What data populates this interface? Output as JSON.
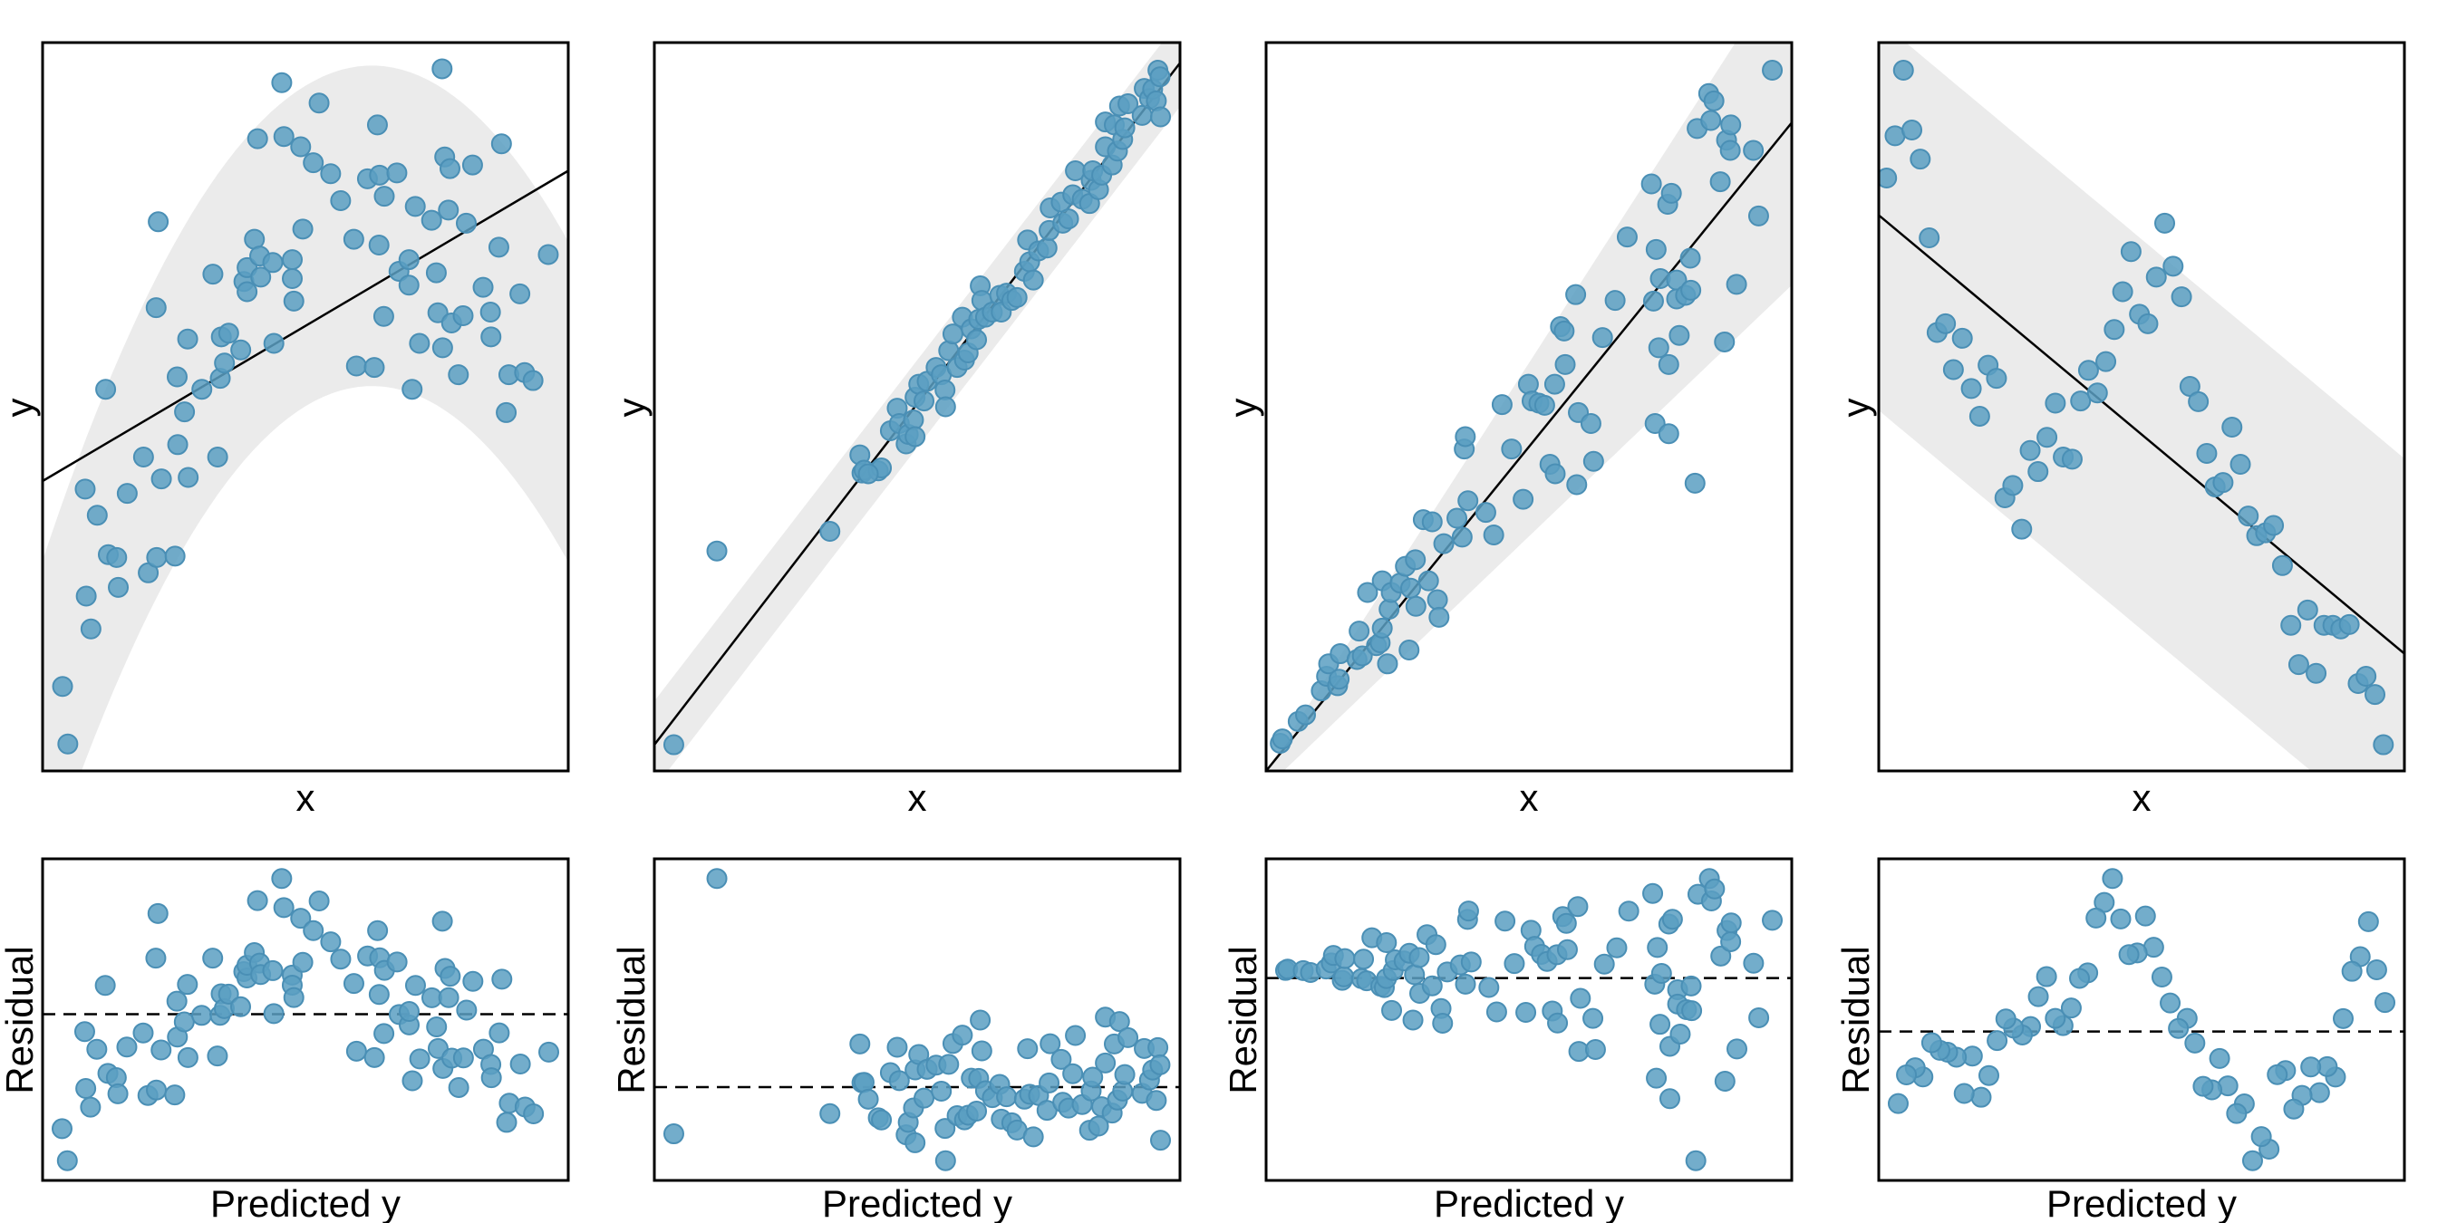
{
  "colors": {
    "point": "#5b9fc2",
    "point_stroke": "#4a8fb5",
    "band": "#ebebeb",
    "line": "#000000"
  },
  "chart_data": [
    {
      "type": "scatter",
      "xlabel": "x",
      "ylabel": "y",
      "residual_xlabel": "Predicted y",
      "residual_ylabel": "Residual",
      "xlim": [
        0,
        10
      ],
      "ylim": [
        0,
        10
      ],
      "fit": {
        "intercept": 3.98,
        "slope": 0.426
      },
      "band": {
        "kind": "quadratic",
        "upper": [
          2.89,
          2.169,
          -0.1731
        ],
        "width": 4.4
      },
      "points": [
        [
          0.38,
          1.16
        ],
        [
          0.48,
          0.37
        ],
        [
          0.81,
          3.87
        ],
        [
          1.04,
          3.51
        ],
        [
          0.83,
          2.4
        ],
        [
          0.92,
          1.95
        ],
        [
          1.25,
          2.97
        ],
        [
          1.41,
          2.93
        ],
        [
          1.44,
          2.52
        ],
        [
          1.2,
          5.24
        ],
        [
          1.61,
          3.81
        ],
        [
          1.92,
          4.31
        ],
        [
          2.01,
          2.72
        ],
        [
          2.17,
          2.93
        ],
        [
          2.26,
          4.01
        ],
        [
          2.2,
          7.54
        ],
        [
          2.16,
          6.36
        ],
        [
          2.52,
          2.95
        ],
        [
          2.56,
          5.41
        ],
        [
          2.57,
          4.48
        ],
        [
          2.7,
          4.93
        ],
        [
          2.77,
          4.03
        ],
        [
          2.76,
          5.93
        ],
        [
          3.03,
          5.24
        ],
        [
          3.24,
          6.82
        ],
        [
          3.33,
          4.31
        ],
        [
          3.38,
          5.39
        ],
        [
          3.4,
          5.96
        ],
        [
          3.46,
          5.6
        ],
        [
          3.54,
          6.01
        ],
        [
          3.77,
          5.78
        ],
        [
          3.83,
          6.72
        ],
        [
          3.89,
          6.58
        ],
        [
          3.89,
          6.91
        ],
        [
          4.03,
          7.3
        ],
        [
          4.13,
          7.07
        ],
        [
          4.15,
          6.78
        ],
        [
          4.09,
          8.68
        ],
        [
          4.38,
          6.98
        ],
        [
          4.4,
          5.87
        ],
        [
          4.55,
          9.45
        ],
        [
          4.59,
          8.71
        ],
        [
          4.75,
          7.02
        ],
        [
          4.75,
          6.76
        ],
        [
          4.78,
          6.45
        ],
        [
          4.91,
          8.57
        ],
        [
          4.95,
          7.44
        ],
        [
          5.15,
          8.35
        ],
        [
          5.26,
          9.17
        ],
        [
          5.48,
          8.2
        ],
        [
          5.67,
          7.83
        ],
        [
          5.92,
          7.3
        ],
        [
          5.97,
          5.56
        ],
        [
          6.18,
          8.13
        ],
        [
          6.31,
          5.54
        ],
        [
          6.41,
          8.18
        ],
        [
          6.4,
          7.22
        ],
        [
          6.37,
          8.87
        ],
        [
          6.49,
          6.24
        ],
        [
          6.5,
          7.89
        ],
        [
          6.74,
          8.21
        ],
        [
          6.78,
          6.86
        ],
        [
          6.97,
          6.67
        ],
        [
          6.97,
          7.02
        ],
        [
          7.03,
          5.24
        ],
        [
          7.09,
          7.75
        ],
        [
          7.17,
          5.87
        ],
        [
          7.4,
          7.56
        ],
        [
          7.49,
          6.84
        ],
        [
          7.6,
          9.64
        ],
        [
          7.61,
          5.81
        ],
        [
          7.52,
          6.29
        ],
        [
          7.65,
          8.43
        ],
        [
          7.72,
          7.7
        ],
        [
          7.75,
          8.27
        ],
        [
          7.78,
          6.15
        ],
        [
          7.91,
          5.44
        ],
        [
          8.0,
          6.25
        ],
        [
          8.06,
          7.52
        ],
        [
          8.18,
          8.32
        ],
        [
          8.38,
          6.64
        ],
        [
          8.52,
          6.3
        ],
        [
          8.53,
          5.96
        ],
        [
          8.68,
          7.19
        ],
        [
          8.73,
          8.61
        ],
        [
          8.82,
          4.92
        ],
        [
          8.87,
          5.44
        ],
        [
          9.08,
          6.55
        ],
        [
          9.17,
          5.47
        ],
        [
          9.33,
          5.36
        ],
        [
          9.62,
          7.09
        ]
      ]
    },
    {
      "type": "scatter",
      "xlabel": "x",
      "ylabel": "y",
      "residual_xlabel": "Predicted y",
      "residual_ylabel": "Residual",
      "xlim": [
        0,
        10
      ],
      "ylim": [
        0,
        10
      ],
      "fit": {
        "intercept": 0.36,
        "slope": 0.936
      },
      "band": {
        "kind": "linear",
        "upper": [
          0.96,
          0.936
        ],
        "lower": [
          -0.24,
          0.936
        ]
      },
      "points": [
        [
          0.37,
          0.36
        ],
        [
          1.19,
          3.02
        ],
        [
          3.34,
          3.29
        ],
        [
          3.91,
          4.34
        ],
        [
          3.95,
          4.09
        ],
        [
          3.99,
          4.13
        ],
        [
          4.26,
          4.12
        ],
        [
          4.32,
          4.16
        ],
        [
          4.07,
          4.08
        ],
        [
          4.49,
          4.67
        ],
        [
          4.62,
          4.98
        ],
        [
          4.66,
          4.77
        ],
        [
          4.79,
          4.49
        ],
        [
          4.83,
          4.62
        ],
        [
          4.93,
          4.82
        ],
        [
          4.96,
          4.59
        ],
        [
          4.96,
          5.13
        ],
        [
          5.03,
          5.31
        ],
        [
          5.13,
          5.08
        ],
        [
          5.19,
          5.35
        ],
        [
          5.36,
          5.54
        ],
        [
          5.46,
          5.44
        ],
        [
          5.53,
          5.23
        ],
        [
          5.54,
          5.0
        ],
        [
          5.6,
          5.77
        ],
        [
          5.68,
          6.0
        ],
        [
          5.76,
          5.54
        ],
        [
          5.86,
          6.23
        ],
        [
          5.9,
          5.64
        ],
        [
          5.97,
          5.74
        ],
        [
          6.03,
          6.07
        ],
        [
          6.13,
          5.92
        ],
        [
          6.17,
          6.2
        ],
        [
          6.2,
          6.66
        ],
        [
          6.23,
          6.46
        ],
        [
          6.3,
          6.23
        ],
        [
          6.43,
          6.3
        ],
        [
          6.57,
          6.53
        ],
        [
          6.6,
          6.3
        ],
        [
          6.7,
          6.56
        ],
        [
          6.8,
          6.46
        ],
        [
          6.9,
          6.5
        ],
        [
          7.04,
          6.86
        ],
        [
          7.1,
          7.29
        ],
        [
          7.14,
          6.99
        ],
        [
          7.21,
          6.74
        ],
        [
          7.31,
          7.14
        ],
        [
          7.47,
          7.18
        ],
        [
          7.51,
          7.42
        ],
        [
          7.53,
          7.73
        ],
        [
          7.74,
          7.81
        ],
        [
          7.77,
          7.52
        ],
        [
          7.88,
          7.58
        ],
        [
          7.96,
          7.91
        ],
        [
          8.01,
          8.24
        ],
        [
          8.14,
          7.85
        ],
        [
          8.28,
          7.79
        ],
        [
          8.31,
          8.11
        ],
        [
          8.34,
          8.24
        ],
        [
          8.45,
          7.98
        ],
        [
          8.51,
          8.18
        ],
        [
          8.58,
          8.91
        ],
        [
          8.58,
          8.57
        ],
        [
          8.71,
          8.32
        ],
        [
          8.75,
          8.87
        ],
        [
          8.81,
          8.51
        ],
        [
          8.85,
          9.13
        ],
        [
          8.91,
          8.67
        ],
        [
          8.95,
          8.83
        ],
        [
          9.01,
          9.16
        ],
        [
          9.28,
          9.0
        ],
        [
          9.32,
          9.37
        ],
        [
          9.42,
          9.23
        ],
        [
          9.48,
          9.36
        ],
        [
          9.55,
          9.2
        ],
        [
          9.58,
          9.62
        ],
        [
          9.62,
          9.53
        ],
        [
          9.63,
          8.98
        ]
      ]
    },
    {
      "type": "scatter",
      "xlabel": "x",
      "ylabel": "y",
      "residual_xlabel": "Predicted y",
      "residual_ylabel": "Residual",
      "xlim": [
        0,
        10
      ],
      "ylim": [
        0,
        10
      ],
      "fit": {
        "intercept": 0.0,
        "slope": 0.89
      },
      "band": {
        "kind": "linear",
        "upper": [
          0.0,
          1.12
        ],
        "lower": [
          -0.23,
          0.69
        ]
      },
      "points": [
        [
          0.27,
          0.38
        ],
        [
          0.31,
          0.44
        ],
        [
          0.61,
          0.68
        ],
        [
          0.75,
          0.77
        ],
        [
          1.05,
          1.1
        ],
        [
          1.15,
          1.3
        ],
        [
          1.19,
          1.47
        ],
        [
          1.36,
          1.17
        ],
        [
          1.39,
          1.26
        ],
        [
          1.41,
          1.61
        ],
        [
          1.73,
          1.53
        ],
        [
          1.77,
          1.92
        ],
        [
          1.83,
          1.58
        ],
        [
          1.93,
          2.45
        ],
        [
          2.1,
          1.72
        ],
        [
          2.17,
          1.76
        ],
        [
          2.21,
          1.96
        ],
        [
          2.21,
          2.61
        ],
        [
          2.31,
          1.47
        ],
        [
          2.34,
          2.22
        ],
        [
          2.38,
          2.45
        ],
        [
          2.55,
          2.58
        ],
        [
          2.65,
          2.81
        ],
        [
          2.72,
          1.66
        ],
        [
          2.75,
          2.51
        ],
        [
          2.84,
          2.9
        ],
        [
          2.85,
          2.26
        ],
        [
          2.99,
          3.45
        ],
        [
          3.09,
          2.61
        ],
        [
          3.16,
          3.42
        ],
        [
          3.26,
          2.35
        ],
        [
          3.29,
          2.11
        ],
        [
          3.38,
          3.12
        ],
        [
          3.63,
          3.47
        ],
        [
          3.73,
          3.21
        ],
        [
          3.77,
          4.42
        ],
        [
          3.79,
          4.59
        ],
        [
          3.84,
          3.71
        ],
        [
          4.18,
          3.55
        ],
        [
          4.33,
          3.24
        ],
        [
          4.49,
          5.03
        ],
        [
          4.67,
          4.42
        ],
        [
          4.89,
          3.73
        ],
        [
          4.99,
          5.31
        ],
        [
          5.06,
          5.08
        ],
        [
          5.19,
          5.05
        ],
        [
          5.3,
          5.02
        ],
        [
          5.4,
          4.21
        ],
        [
          5.49,
          5.31
        ],
        [
          5.5,
          4.08
        ],
        [
          5.6,
          6.1
        ],
        [
          5.67,
          6.04
        ],
        [
          5.69,
          5.58
        ],
        [
          5.89,
          6.54
        ],
        [
          5.91,
          3.93
        ],
        [
          5.94,
          4.92
        ],
        [
          6.18,
          4.77
        ],
        [
          6.23,
          4.25
        ],
        [
          6.4,
          5.95
        ],
        [
          6.64,
          6.46
        ],
        [
          6.87,
          7.33
        ],
        [
          7.33,
          8.06
        ],
        [
          7.37,
          6.45
        ],
        [
          7.4,
          4.77
        ],
        [
          7.42,
          7.16
        ],
        [
          7.47,
          5.81
        ],
        [
          7.5,
          6.76
        ],
        [
          7.66,
          4.63
        ],
        [
          7.66,
          5.58
        ],
        [
          7.64,
          7.78
        ],
        [
          7.71,
          7.93
        ],
        [
          7.81,
          6.74
        ],
        [
          7.81,
          6.48
        ],
        [
          7.86,
          5.98
        ],
        [
          7.98,
          6.53
        ],
        [
          8.07,
          7.04
        ],
        [
          8.08,
          6.6
        ],
        [
          8.16,
          3.95
        ],
        [
          8.2,
          8.82
        ],
        [
          8.42,
          9.3
        ],
        [
          8.46,
          8.93
        ],
        [
          8.52,
          9.2
        ],
        [
          8.64,
          8.09
        ],
        [
          8.72,
          5.89
        ],
        [
          8.76,
          8.66
        ],
        [
          8.83,
          8.52
        ],
        [
          8.84,
          8.87
        ],
        [
          8.95,
          6.68
        ],
        [
          9.27,
          8.52
        ],
        [
          9.37,
          7.62
        ],
        [
          9.63,
          9.62
        ]
      ]
    },
    {
      "type": "scatter",
      "xlabel": "x",
      "ylabel": "y",
      "residual_xlabel": "Predicted y",
      "residual_ylabel": "Residual",
      "xlim": [
        0,
        10
      ],
      "ylim": [
        0,
        10
      ],
      "fit": {
        "intercept": 7.63,
        "slope": -0.602
      },
      "band": {
        "kind": "linear",
        "upper": [
          10.31,
          -0.602
        ],
        "lower": [
          4.95,
          -0.602
        ]
      },
      "points": [
        [
          0.47,
          9.62
        ],
        [
          0.31,
          8.72
        ],
        [
          0.63,
          8.8
        ],
        [
          0.79,
          8.4
        ],
        [
          0.15,
          8.14
        ],
        [
          0.96,
          7.32
        ],
        [
          1.11,
          6.02
        ],
        [
          1.27,
          6.14
        ],
        [
          1.59,
          5.94
        ],
        [
          1.42,
          5.51
        ],
        [
          1.76,
          5.25
        ],
        [
          1.92,
          4.87
        ],
        [
          2.08,
          5.57
        ],
        [
          2.24,
          5.39
        ],
        [
          2.4,
          3.75
        ],
        [
          2.55,
          3.92
        ],
        [
          2.72,
          3.32
        ],
        [
          2.88,
          4.4
        ],
        [
          3.03,
          4.11
        ],
        [
          3.2,
          4.58
        ],
        [
          3.36,
          5.05
        ],
        [
          3.51,
          4.31
        ],
        [
          3.68,
          4.28
        ],
        [
          3.84,
          5.08
        ],
        [
          3.99,
          5.5
        ],
        [
          4.16,
          5.19
        ],
        [
          4.32,
          5.62
        ],
        [
          4.48,
          6.06
        ],
        [
          4.64,
          6.58
        ],
        [
          4.8,
          7.13
        ],
        [
          4.96,
          6.27
        ],
        [
          5.12,
          6.14
        ],
        [
          5.28,
          6.78
        ],
        [
          5.44,
          7.52
        ],
        [
          5.6,
          6.93
        ],
        [
          5.76,
          6.51
        ],
        [
          5.92,
          5.28
        ],
        [
          6.08,
          5.07
        ],
        [
          6.24,
          4.36
        ],
        [
          6.4,
          3.9
        ],
        [
          6.55,
          3.96
        ],
        [
          6.72,
          4.72
        ],
        [
          6.88,
          4.21
        ],
        [
          7.03,
          3.5
        ],
        [
          7.19,
          3.23
        ],
        [
          7.36,
          3.27
        ],
        [
          7.51,
          3.37
        ],
        [
          7.68,
          2.82
        ],
        [
          7.84,
          2.0
        ],
        [
          7.99,
          1.46
        ],
        [
          8.16,
          2.21
        ],
        [
          8.32,
          1.34
        ],
        [
          8.47,
          2.0
        ],
        [
          8.64,
          2.0
        ],
        [
          8.79,
          1.95
        ],
        [
          8.95,
          2.01
        ],
        [
          9.12,
          1.2
        ],
        [
          9.27,
          1.3
        ],
        [
          9.44,
          1.05
        ],
        [
          9.6,
          0.36
        ]
      ]
    }
  ]
}
